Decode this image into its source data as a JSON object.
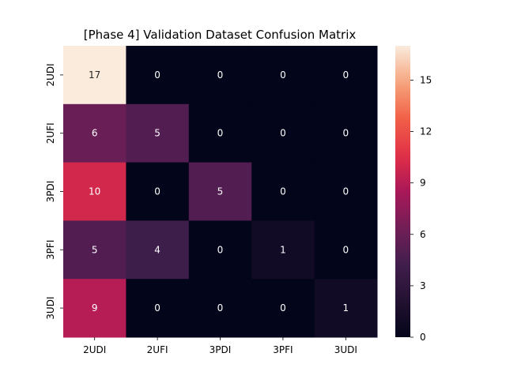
{
  "chart_data": {
    "type": "heatmap",
    "title": "[Phase 4] Validation Dataset Confusion Matrix",
    "x_categories": [
      "2UDI",
      "2UFI",
      "3PDI",
      "3PFI",
      "3UDI"
    ],
    "y_categories": [
      "2UDI",
      "2UFI",
      "3PDI",
      "3PFI",
      "3UDI"
    ],
    "values": [
      [
        17,
        0,
        0,
        0,
        0
      ],
      [
        6,
        5,
        0,
        0,
        0
      ],
      [
        10,
        0,
        5,
        0,
        0
      ],
      [
        5,
        4,
        0,
        1,
        0
      ],
      [
        9,
        0,
        0,
        0,
        1
      ]
    ],
    "colorbar": {
      "min": 0,
      "max": 17,
      "ticks": [
        0,
        3,
        6,
        9,
        12,
        15
      ]
    },
    "colormap": "rocket",
    "annotations": true,
    "grid": false
  }
}
